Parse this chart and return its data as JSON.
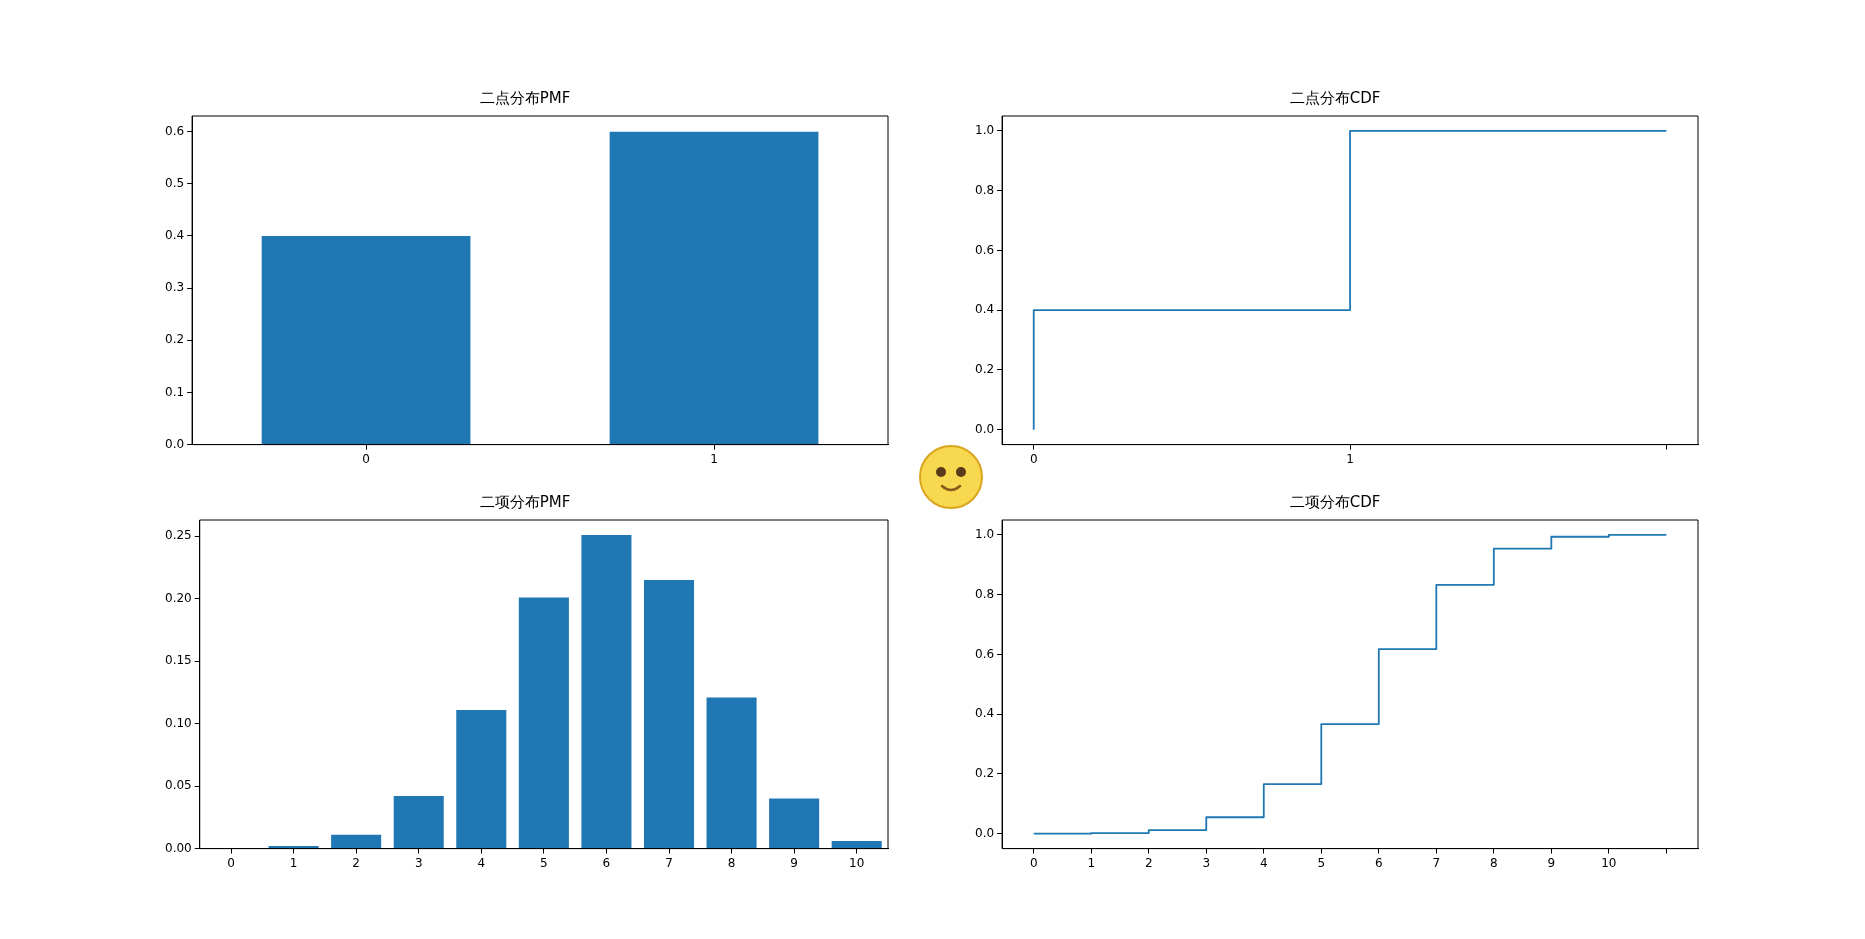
{
  "chart_data": [
    {
      "type": "bar",
      "title": "二点分布PMF",
      "categories": [
        "0",
        "1"
      ],
      "values": [
        0.4,
        0.6
      ],
      "color": "#1f77b4",
      "ylim": [
        0,
        0.63
      ],
      "yticks": [
        {
          "value": 0,
          "label": "0.0"
        },
        0.1,
        0.2,
        0.3,
        0.4,
        0.5,
        0.6
      ]
    },
    {
      "type": "step",
      "title": "二点分布CDF",
      "x": [
        0,
        1,
        2
      ],
      "values": [
        0,
        0.4,
        1.0
      ],
      "color": "#1f77b4",
      "xlim": [
        -0.1,
        2.1
      ],
      "xticks": [
        0,
        1,
        {
          "value": 2,
          "label": null
        }
      ],
      "ylim": [
        -0.05,
        1.05
      ],
      "yticks": [
        {
          "value": 0,
          "label": "0.0"
        },
        0.2,
        0.4,
        0.6,
        0.8,
        {
          "value": 1,
          "label": "1.0"
        }
      ]
    },
    {
      "type": "bar",
      "title": "二项分布PMF",
      "categories": [
        "0",
        "1",
        "2",
        "3",
        "4",
        "5",
        "6",
        "7",
        "8",
        "9",
        "10"
      ],
      "values": [
        0,
        0.002,
        0.011,
        0.042,
        0.111,
        0.201,
        0.251,
        0.215,
        0.121,
        0.04,
        0.006
      ],
      "color": "#1f77b4",
      "ylim": [
        0,
        0.263
      ],
      "yticks": [
        {
          "value": 0,
          "label": "0.00"
        },
        0.05,
        {
          "value": 0.1,
          "label": "0.10"
        },
        0.15,
        {
          "value": 0.2,
          "label": "0.20"
        },
        0.25
      ]
    },
    {
      "type": "step",
      "title": "二项分布CDF",
      "x": [
        0,
        1,
        2,
        3,
        4,
        5,
        6,
        7,
        8,
        9,
        10,
        11
      ],
      "values": [
        0,
        0,
        0.002,
        0.012,
        0.055,
        0.166,
        0.367,
        0.618,
        0.833,
        0.954,
        0.994,
        1.0
      ],
      "color": "#1f77b4",
      "xlim": [
        -0.55,
        11.55
      ],
      "xticks": [
        0,
        1,
        2,
        3,
        4,
        5,
        6,
        7,
        8,
        9,
        10,
        {
          "value": 11,
          "label": null
        }
      ],
      "ylim": [
        -0.05,
        1.05
      ],
      "yticks": [
        {
          "value": 0,
          "label": "0.0"
        },
        0.2,
        0.4,
        0.6,
        0.8,
        {
          "value": 1,
          "label": "1.0"
        }
      ]
    }
  ]
}
